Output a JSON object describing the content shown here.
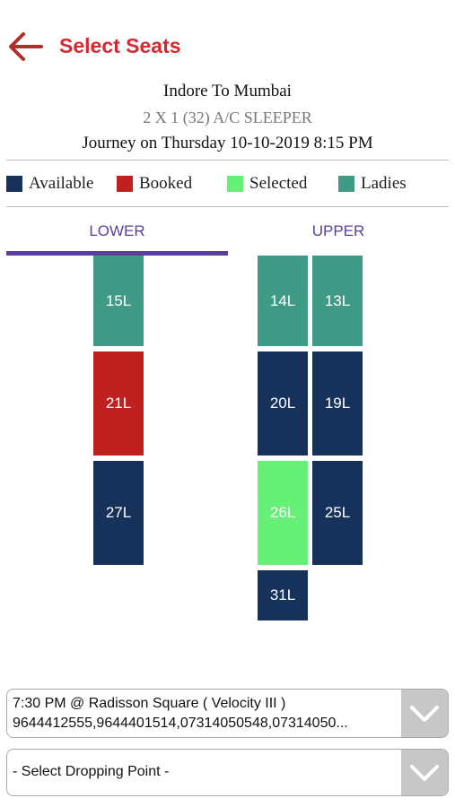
{
  "header": {
    "title": "Select Seats"
  },
  "trip": {
    "route": "Indore To Mumbai",
    "bus_type": "2 X 1 (32) A/C SLEEPER",
    "journey": "Journey on Thursday 10-10-2019 8:15 PM"
  },
  "legend": [
    {
      "label": "Available",
      "color": "#17325a"
    },
    {
      "label": "Booked",
      "color": "#bf2020"
    },
    {
      "label": "Selected",
      "color": "#66f077"
    },
    {
      "label": "Ladies",
      "color": "#3f9a86"
    }
  ],
  "tabs": {
    "lower": "LOWER",
    "upper": "UPPER",
    "active": "LOWER"
  },
  "seats": {
    "s15L": {
      "label": "15L",
      "status": "Ladies"
    },
    "s21L": {
      "label": "21L",
      "status": "Booked"
    },
    "s27L": {
      "label": "27L",
      "status": "Available"
    },
    "s14L": {
      "label": "14L",
      "status": "Ladies"
    },
    "s13L": {
      "label": "13L",
      "status": "Ladies"
    },
    "s20L": {
      "label": "20L",
      "status": "Available"
    },
    "s19L": {
      "label": "19L",
      "status": "Available"
    },
    "s26L": {
      "label": "26L",
      "status": "Selected"
    },
    "s25L": {
      "label": "25L",
      "status": "Available"
    },
    "s31L": {
      "label": "31L",
      "status": "Available"
    }
  },
  "boarding": {
    "line1": "7:30 PM @ Radisson Square ( Velocity III )",
    "line2": "9644412555,9644401514,07314050548,07314050..."
  },
  "dropping": {
    "placeholder": "- Select Dropping Point -"
  }
}
